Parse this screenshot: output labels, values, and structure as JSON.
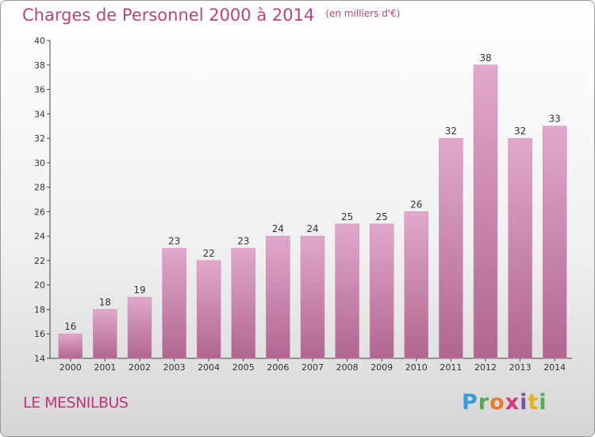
{
  "title": {
    "main": "Charges de Personnel 2000 à 2014",
    "unit": "(en milliers d'€)"
  },
  "place_name": "LE MESNILBUS",
  "logo": {
    "letters": [
      "P",
      "r",
      "o",
      "x",
      "i",
      "t",
      "i"
    ]
  },
  "colors": {
    "title": "#b4467e",
    "bar_top": "#e2a8cc",
    "bar_bottom": "#b06690",
    "place": "#c0357a"
  },
  "chart_data": {
    "type": "bar",
    "title": "Charges de Personnel 2000 à 2014",
    "subtitle": "(en milliers d'€)",
    "categories": [
      "2000",
      "2001",
      "2002",
      "2003",
      "2004",
      "2005",
      "2006",
      "2007",
      "2008",
      "2009",
      "2010",
      "2011",
      "2012",
      "2013",
      "2014"
    ],
    "values": [
      16,
      18,
      19,
      23,
      22,
      23,
      24,
      24,
      25,
      25,
      26,
      32,
      38,
      32,
      33
    ],
    "data_labels": [
      "16",
      "18",
      "19",
      "23",
      "22",
      "23",
      "24",
      "24",
      "25",
      "25",
      "26",
      "32",
      "38",
      "32",
      "33"
    ],
    "ylim": [
      14,
      40
    ],
    "yticks": [
      14,
      16,
      18,
      20,
      22,
      24,
      26,
      28,
      30,
      32,
      34,
      36,
      38,
      40
    ],
    "ytick_labels": [
      "14",
      "16",
      "18",
      "20",
      "22",
      "24",
      "26",
      "28",
      "30",
      "32",
      "34",
      "36",
      "38",
      "40"
    ],
    "grid": false,
    "xlabel": "",
    "ylabel": ""
  }
}
